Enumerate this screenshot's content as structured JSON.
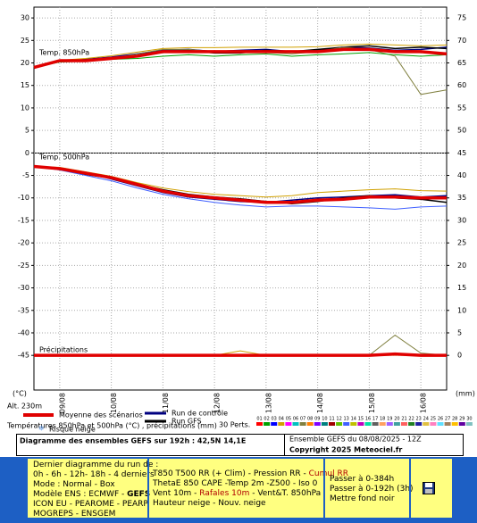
{
  "chart_data": {
    "type": "line",
    "title": "Diagramme des ensembles GEFS sur 192h : 42,5N 14,1E",
    "subtitle": "Ensemble GEFS du 08/08/2025 - 12Z",
    "copyright": "Copyright 2025 Meteociel.fr",
    "panel_labels": [
      "Temp. 850hPa",
      "Temp. 500hPa",
      "Précipitations"
    ],
    "y_label": "(°C)",
    "altitude": "Alt. 230m",
    "y2_label": "(mm)",
    "legend_caption": "Températures 850hPa et 500hPa (°C) , précipitations (mm)",
    "snow_label": "Risque neige",
    "x": [
      0,
      12,
      24,
      36,
      48,
      60,
      72,
      84,
      96,
      108,
      120,
      132,
      144,
      156,
      168,
      180,
      192
    ],
    "xlim": [
      0,
      192
    ],
    "xticks": [
      {
        "value": 12,
        "label": "09/08"
      },
      {
        "value": 36,
        "label": "10/08"
      },
      {
        "value": 60,
        "label": "11/08"
      },
      {
        "value": 84,
        "label": "12/08"
      },
      {
        "value": 108,
        "label": "13/08"
      },
      {
        "value": 132,
        "label": "14/08"
      },
      {
        "value": 156,
        "label": "15/08"
      },
      {
        "value": 180,
        "label": "16/08"
      }
    ],
    "ylim": [
      -52.7,
      32.4
    ],
    "yticks": [
      30,
      25,
      20,
      15,
      10,
      5,
      0,
      -5,
      -10,
      -15,
      -20,
      -25,
      -30,
      -35,
      -40,
      -45
    ],
    "y2lim": [
      -7.7,
      77.4
    ],
    "y2ticks": [
      75,
      70,
      65,
      60,
      55,
      50,
      45,
      40,
      35,
      30,
      25,
      20,
      15,
      10,
      5,
      0
    ],
    "grid": true,
    "series": [
      {
        "name": "Moyenne des scénarios",
        "color": "#e00000",
        "values": [
          19,
          20.5,
          20.5,
          21,
          21.5,
          22.5,
          22.5,
          22.5,
          22.5,
          22.5,
          22.5,
          22.5,
          23,
          23,
          22.5,
          22.5,
          22
        ]
      },
      {
        "name": "Run de contrôle",
        "color": "#000080",
        "values": [
          19,
          20.3,
          20.8,
          21.3,
          22,
          22.8,
          23,
          22.5,
          22.8,
          23,
          22.5,
          22.8,
          23.5,
          23.3,
          22.8,
          23,
          23.5
        ]
      },
      {
        "name": "Run GFS",
        "color": "#000000",
        "values": [
          19,
          20.4,
          20.6,
          21,
          21.6,
          22.4,
          22.8,
          22.2,
          22.2,
          22.8,
          22.5,
          23,
          23.5,
          23.8,
          23.2,
          23.5,
          23.2
        ]
      },
      {
        "color": "#808040",
        "values": [
          19,
          20.5,
          20.6,
          21,
          22,
          23,
          23,
          22.5,
          22.5,
          22.3,
          22,
          22.5,
          23.5,
          23,
          21.5,
          13,
          14
        ]
      },
      {
        "color": "#00a000",
        "values": [
          19,
          20.2,
          20.4,
          20.8,
          21,
          21.5,
          21.8,
          21.5,
          21.8,
          22,
          21.5,
          21.8,
          22,
          22.3,
          21.8,
          21.5,
          21.8
        ]
      },
      {
        "color": "#d0a000",
        "values": [
          19,
          20.6,
          21,
          21.6,
          22.4,
          23.2,
          23.4,
          23.4,
          23.5,
          23.5,
          23.5,
          23.6,
          24,
          24.2,
          24,
          23.8,
          24
        ]
      },
      {
        "color": "#e00000",
        "values": [
          -3,
          -3.5,
          -4.5,
          -5.5,
          -7,
          -8.5,
          -9.5,
          -10,
          -10.5,
          -11,
          -11,
          -10.5,
          -10.3,
          -9.8,
          -9.8,
          -10,
          -10
        ]
      },
      {
        "color": "#000080",
        "values": [
          -3,
          -3.4,
          -4.3,
          -5.8,
          -7.3,
          -8.8,
          -9.8,
          -10.3,
          -10.8,
          -11,
          -10.5,
          -10,
          -9.8,
          -9.5,
          -9.3,
          -9.8,
          -9.5
        ]
      },
      {
        "color": "#000000",
        "values": [
          -3,
          -3.6,
          -4.8,
          -5.6,
          -7,
          -8.2,
          -9.2,
          -9.8,
          -10.2,
          -10.8,
          -11.3,
          -10.8,
          -10,
          -9.5,
          -10,
          -10.3,
          -11
        ]
      },
      {
        "color": "#4060ff",
        "values": [
          -3,
          -3.8,
          -5,
          -6.2,
          -7.8,
          -9.2,
          -10.2,
          -11,
          -11.6,
          -12,
          -11.8,
          -11.8,
          -12,
          -12.2,
          -12.5,
          -12,
          -11.8
        ]
      },
      {
        "color": "#d0a000",
        "values": [
          -3,
          -3.2,
          -4.2,
          -5.2,
          -6.6,
          -7.8,
          -8.6,
          -9.2,
          -9.5,
          -9.8,
          -9.5,
          -8.8,
          -8.5,
          -8.2,
          -8,
          -8.4,
          -8.5
        ]
      },
      {
        "color": "#e00000",
        "axis": "y2",
        "values": [
          0,
          0,
          0,
          0,
          0,
          0,
          0,
          0,
          0,
          0,
          0,
          0,
          0,
          0,
          0.3,
          0,
          0
        ]
      },
      {
        "color": "#808040",
        "axis": "y2",
        "values": [
          0,
          0,
          0,
          0,
          0,
          0,
          0,
          0,
          0,
          0,
          0,
          0,
          0,
          0,
          4.5,
          0.5,
          0
        ]
      },
      {
        "color": "#d0a000",
        "axis": "y2",
        "values": [
          0,
          0,
          0,
          0,
          0,
          0,
          0,
          0,
          1,
          0,
          0,
          0,
          0,
          0,
          0,
          0,
          0
        ]
      }
    ],
    "perturbations": {
      "label": "30 Perts.",
      "members": [
        {
          "name": "01",
          "color": "#ff0000"
        },
        {
          "name": "02",
          "color": "#00a000"
        },
        {
          "name": "03",
          "color": "#0000ff"
        },
        {
          "name": "04",
          "color": "#d0a000"
        },
        {
          "name": "05",
          "color": "#ff00ff"
        },
        {
          "name": "06",
          "color": "#00c0c0"
        },
        {
          "name": "07",
          "color": "#808040"
        },
        {
          "name": "08",
          "color": "#ff8000"
        },
        {
          "name": "09",
          "color": "#8000ff"
        },
        {
          "name": "10",
          "color": "#008080"
        },
        {
          "name": "11",
          "color": "#a00000"
        },
        {
          "name": "12",
          "color": "#60c000"
        },
        {
          "name": "13",
          "color": "#4060ff"
        },
        {
          "name": "14",
          "color": "#c0c000"
        },
        {
          "name": "15",
          "color": "#c000c0"
        },
        {
          "name": "16",
          "color": "#00e0a0"
        },
        {
          "name": "17",
          "color": "#606060"
        },
        {
          "name": "18",
          "color": "#ffa060"
        },
        {
          "name": "19",
          "color": "#a060ff"
        },
        {
          "name": "20",
          "color": "#40a0a0"
        },
        {
          "name": "21",
          "color": "#ff6060"
        },
        {
          "name": "22",
          "color": "#208020"
        },
        {
          "name": "23",
          "color": "#2020a0"
        },
        {
          "name": "24",
          "color": "#e0c040"
        },
        {
          "name": "25",
          "color": "#ff80c0"
        },
        {
          "name": "26",
          "color": "#60e0ff"
        },
        {
          "name": "27",
          "color": "#a08060"
        },
        {
          "name": "28",
          "color": "#ffc000"
        },
        {
          "name": "29",
          "color": "#6000a0"
        },
        {
          "name": "30",
          "color": "#80c0c0"
        }
      ]
    }
  },
  "panel": {
    "runs": [
      "Dernier diagramme du run de :",
      "0h - 6h - 12h- 18h - 4 derniers",
      "Mode : Normal - Box",
      "Modèle ENS : ECMWF - ",
      "GEFS",
      "ICON EU - PEAROME - PEARP",
      "MOGREPS - ENSGEM"
    ],
    "params": [
      "T850 T500 RR (+ Clim) - Pression RR - ",
      "Cumul RR",
      "ThetaE 850 CAPE -Temp 2m -Z500 - Iso 0",
      "Vent 10m - ",
      "Rafales 10m",
      " - Vent&T. 850hPa",
      "Hauteur neige - Nouv. neige"
    ],
    "options": [
      "Passer à 0-384h",
      "Passer à 0-192h (3h)",
      "Mettre fond noir"
    ]
  }
}
